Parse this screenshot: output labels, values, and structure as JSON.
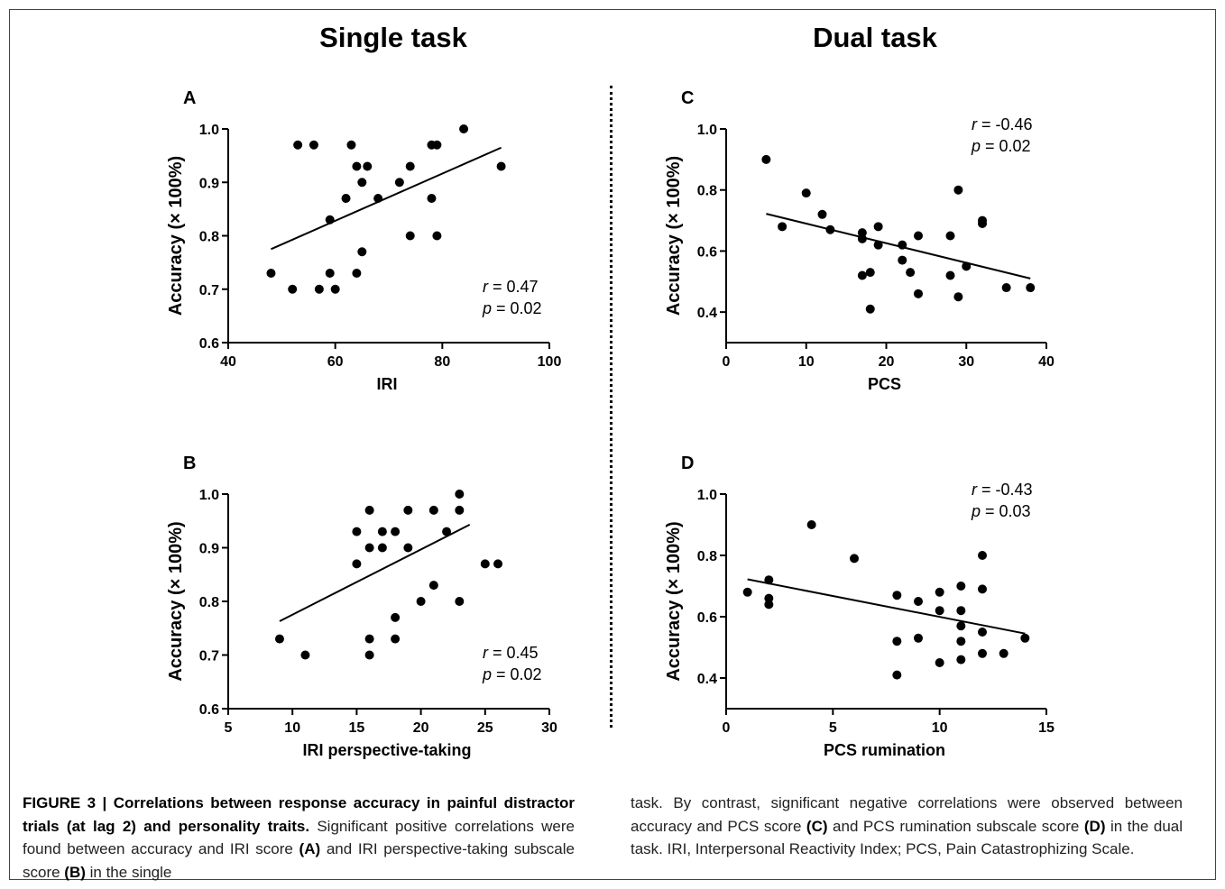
{
  "titles": {
    "left": "Single task",
    "right": "Dual task"
  },
  "chart_data": [
    {
      "type": "scatter",
      "panel": "A",
      "xlabel": "IRI",
      "ylabel": "Accuracy (× 100%)",
      "xlim": [
        40,
        100
      ],
      "ylim": [
        0.6,
        1.0
      ],
      "xticks": [
        "40",
        "60",
        "80",
        "100"
      ],
      "yticks": [
        "0.6",
        "0.7",
        "0.8",
        "0.9",
        "1.0"
      ],
      "x": [
        48,
        52,
        53,
        56,
        57,
        59,
        59,
        60,
        62,
        63,
        64,
        64,
        65,
        65,
        66,
        68,
        72,
        74,
        74,
        78,
        78,
        79,
        79,
        84,
        91
      ],
      "y": [
        0.73,
        0.7,
        0.97,
        0.97,
        0.7,
        0.83,
        0.73,
        0.7,
        0.87,
        0.97,
        0.93,
        0.73,
        0.9,
        0.77,
        0.93,
        0.87,
        0.9,
        0.93,
        0.8,
        0.97,
        0.87,
        0.97,
        0.8,
        1.0,
        0.93
      ],
      "fit_line": {
        "x": [
          48,
          91
        ],
        "y": [
          0.775,
          0.965
        ]
      },
      "r_label": "r",
      "r_value": " = 0.47",
      "p_label": "p",
      "p_value": " = 0.02",
      "stats_position": "bottom-right"
    },
    {
      "type": "scatter",
      "panel": "B",
      "xlabel": "IRI perspective-taking",
      "ylabel": "Accuracy (× 100%)",
      "xlim": [
        5,
        30
      ],
      "ylim": [
        0.6,
        1.0
      ],
      "xticks": [
        "5",
        "10",
        "15",
        "20",
        "25",
        "30"
      ],
      "yticks": [
        "0.6",
        "0.7",
        "0.8",
        "0.9",
        "1.0"
      ],
      "x": [
        9,
        11,
        15,
        15,
        16,
        16,
        16,
        16,
        17,
        17,
        18,
        18,
        18,
        19,
        19,
        20,
        21,
        21,
        22,
        23,
        23,
        23,
        25,
        26
      ],
      "y": [
        0.73,
        0.7,
        0.93,
        0.87,
        0.97,
        0.9,
        0.73,
        0.7,
        0.93,
        0.9,
        0.93,
        0.77,
        0.73,
        0.97,
        0.9,
        0.8,
        0.97,
        0.83,
        0.93,
        1.0,
        0.97,
        0.8,
        0.87,
        0.87
      ],
      "fit_line": {
        "x": [
          9,
          23.8
        ],
        "y": [
          0.763,
          0.943
        ]
      },
      "r_label": "r",
      "r_value": " = 0.45",
      "p_label": "p",
      "p_value": " = 0.02",
      "stats_position": "bottom-right"
    },
    {
      "type": "scatter",
      "panel": "C",
      "xlabel": "PCS",
      "ylabel": "Accuracy (× 100%)",
      "xlim": [
        0,
        40
      ],
      "ylim": [
        0.3,
        1.0
      ],
      "xticks": [
        "0",
        "10",
        "20",
        "30",
        "40"
      ],
      "yticks": [
        "0.4",
        "0.6",
        "0.8",
        "1.0"
      ],
      "x": [
        5,
        7,
        10,
        12,
        13,
        17,
        17,
        17,
        18,
        18,
        19,
        19,
        22,
        22,
        23,
        24,
        24,
        28,
        28,
        29,
        29,
        30,
        32,
        32,
        35,
        38
      ],
      "y": [
        0.9,
        0.68,
        0.79,
        0.72,
        0.67,
        0.66,
        0.64,
        0.52,
        0.53,
        0.41,
        0.68,
        0.62,
        0.62,
        0.57,
        0.53,
        0.65,
        0.46,
        0.65,
        0.52,
        0.8,
        0.45,
        0.55,
        0.7,
        0.69,
        0.48,
        0.48
      ],
      "fit_line": {
        "x": [
          5,
          38
        ],
        "y": [
          0.722,
          0.51
        ]
      },
      "r_label": "r",
      "r_value": " = -0.46",
      "p_label": "p",
      "p_value": " = 0.02",
      "stats_position": "top-right"
    },
    {
      "type": "scatter",
      "panel": "D",
      "xlabel": "PCS rumination",
      "ylabel": "Accuracy (× 100%)",
      "xlim": [
        0,
        15
      ],
      "ylim": [
        0.3,
        1.0
      ],
      "xticks": [
        "0",
        "5",
        "10",
        "15"
      ],
      "yticks": [
        "0.4",
        "0.6",
        "0.8",
        "1.0"
      ],
      "x": [
        1,
        2,
        2,
        2,
        4,
        6,
        8,
        8,
        8,
        9,
        9,
        10,
        10,
        10,
        11,
        11,
        11,
        11,
        11,
        12,
        12,
        12,
        12,
        13,
        14
      ],
      "y": [
        0.68,
        0.72,
        0.66,
        0.64,
        0.9,
        0.79,
        0.67,
        0.52,
        0.41,
        0.65,
        0.53,
        0.68,
        0.62,
        0.45,
        0.7,
        0.62,
        0.57,
        0.52,
        0.46,
        0.8,
        0.69,
        0.55,
        0.48,
        0.48,
        0.53
      ],
      "fit_line": {
        "x": [
          1,
          14
        ],
        "y": [
          0.722,
          0.545
        ]
      },
      "r_label": "r",
      "r_value": " = -0.43",
      "p_label": "p",
      "p_value": " = 0.03",
      "stats_position": "top-right"
    }
  ],
  "caption": {
    "fig_label": "FIGURE 3 | Correlations between response accuracy in painful distractor trials (at lag 2) and personality traits.",
    "left_seg1": " Significant positive correlations were found between accuracy and IRI score ",
    "ref_a": "(A)",
    "left_seg2": " and IRI perspective-taking subscale score ",
    "ref_b": "(B)",
    "left_seg3": " in the single",
    "right_seg1": "task. By contrast, significant negative correlations were observed between accuracy and PCS score ",
    "ref_c": "(C)",
    "right_seg2": " and PCS rumination subscale score ",
    "ref_d": "(D)",
    "right_seg3": " in the dual task. IRI, Interpersonal Reactivity Index; PCS, Pain Catastrophizing Scale."
  }
}
